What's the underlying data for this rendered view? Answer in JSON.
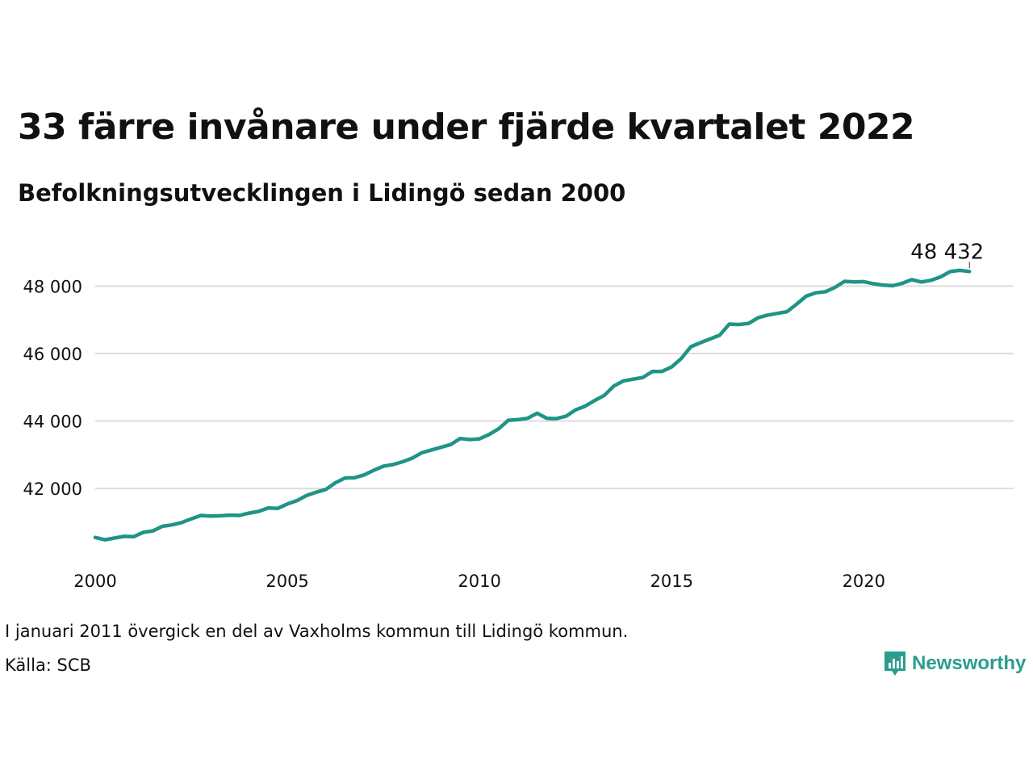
{
  "title": "33 färre invånare under fjärde kvartalet 2022",
  "subtitle": "Befolkningsutvecklingen i Lidingö sedan 2000",
  "note": "I januari 2011 övergick en del av Vaxholms kommun till Lidingö kommun.",
  "source": "Källa: SCB",
  "brand": {
    "name": "Newsworthy",
    "icon": "newsworthy-logo-icon",
    "color": "#2a9d8f"
  },
  "chart_data": {
    "type": "line",
    "x_start": "2000 Q1",
    "x_step": "quarter",
    "xlim": [
      2000,
      2023.9
    ],
    "ylim": [
      39800,
      49300
    ],
    "y_ticks": [
      42000,
      44000,
      46000,
      48000
    ],
    "y_tick_labels": [
      "42 000",
      "44 000",
      "46 000",
      "48 000"
    ],
    "x_ticks": [
      2000,
      2005,
      2010,
      2015,
      2020
    ],
    "x_tick_labels": [
      "2000",
      "2005",
      "2010",
      "2015",
      "2020"
    ],
    "grid": true,
    "line_color": "#1f9486",
    "end_label": "48 432",
    "values": [
      40550,
      40480,
      40530,
      40580,
      40570,
      40700,
      40740,
      40880,
      40920,
      40990,
      41100,
      41200,
      41180,
      41190,
      41210,
      41200,
      41270,
      41320,
      41420,
      41410,
      41540,
      41640,
      41790,
      41890,
      41970,
      42170,
      42310,
      42320,
      42400,
      42540,
      42660,
      42710,
      42790,
      42900,
      43060,
      43140,
      43220,
      43300,
      43480,
      43450,
      43470,
      43600,
      43770,
      44020,
      44040,
      44080,
      44230,
      44080,
      44070,
      44140,
      44330,
      44440,
      44610,
      44760,
      45040,
      45190,
      45240,
      45290,
      45470,
      45470,
      45600,
      45850,
      46200,
      46320,
      46430,
      46540,
      46870,
      46860,
      46890,
      47060,
      47140,
      47190,
      47240,
      47460,
      47700,
      47800,
      47830,
      47960,
      48140,
      48120,
      48130,
      48070,
      48030,
      48010,
      48080,
      48190,
      48120,
      48170,
      48270,
      48430,
      48465,
      48432
    ]
  }
}
